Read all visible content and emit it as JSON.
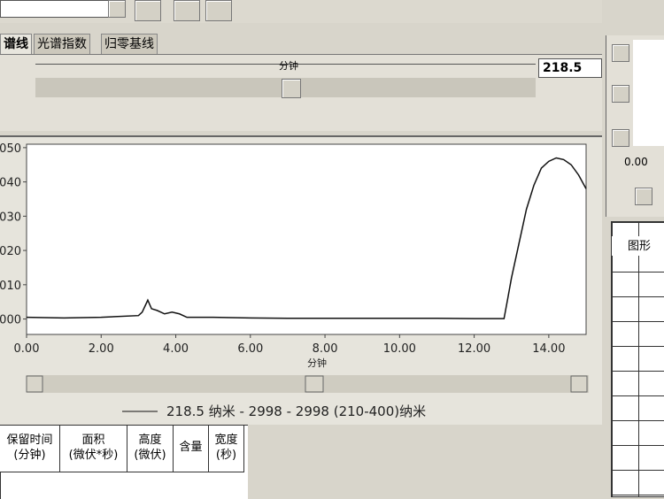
{
  "tabs": [
    "谱线",
    "光谱指数",
    "归零基线"
  ],
  "top_slider": {
    "label": "分钟",
    "value": "218.5"
  },
  "chart_data": {
    "type": "line",
    "xlabel": "分钟",
    "x": [
      0,
      1,
      2,
      3,
      3.1,
      3.25,
      3.35,
      3.5,
      3.7,
      3.9,
      4.1,
      4.3,
      5,
      6,
      7,
      8,
      9,
      10,
      11,
      12,
      12.8,
      12.9,
      13,
      13.2,
      13.4,
      13.6,
      13.8,
      14,
      14.2,
      14.4,
      14.6,
      14.8,
      15
    ],
    "series": [
      {
        "name": "218.5 纳米 - 2998 - 2998 (210-400)纳米",
        "color": "#111111",
        "values": [
          0.0005,
          0.0003,
          0.0005,
          0.001,
          0.002,
          0.0055,
          0.003,
          0.0025,
          0.0015,
          0.002,
          0.0015,
          0.0005,
          0.0005,
          0.0003,
          0.0002,
          0.0002,
          0.0002,
          0.0002,
          0.0002,
          0.0001,
          0.0001,
          0.006,
          0.012,
          0.022,
          0.032,
          0.039,
          0.044,
          0.046,
          0.047,
          0.0465,
          0.045,
          0.042,
          0.038
        ]
      }
    ],
    "xlim": [
      0,
      15
    ],
    "ylim": [
      -0.0045,
      0.051
    ],
    "xticks": [
      {
        "value": 0,
        "label": "0.00"
      },
      {
        "value": 2,
        "label": "2.00"
      },
      {
        "value": 4,
        "label": "4.00"
      },
      {
        "value": 6,
        "label": "6.00"
      },
      {
        "value": 8,
        "label": "8.00"
      },
      {
        "value": 10,
        "label": "10.00"
      },
      {
        "value": 12,
        "label": "12.00"
      },
      {
        "value": 14,
        "label": "14.00"
      }
    ],
    "yticks": [
      {
        "value": 0,
        "label": "000"
      },
      {
        "value": 0.01,
        "label": "010"
      },
      {
        "value": 0.02,
        "label": "020"
      },
      {
        "value": 0.03,
        "label": "030"
      },
      {
        "value": 0.04,
        "label": "040"
      },
      {
        "value": 0.05,
        "label": "050"
      }
    ]
  },
  "side_panel": {
    "value": "0.00",
    "column": "图形"
  },
  "table": {
    "headers": [
      [
        "保留时间",
        "(分钟)"
      ],
      [
        "面积",
        "(微伏*秒)"
      ],
      [
        "高度",
        "(微伏)"
      ],
      [
        "含量"
      ],
      [
        "宽度",
        "(秒)"
      ]
    ]
  }
}
